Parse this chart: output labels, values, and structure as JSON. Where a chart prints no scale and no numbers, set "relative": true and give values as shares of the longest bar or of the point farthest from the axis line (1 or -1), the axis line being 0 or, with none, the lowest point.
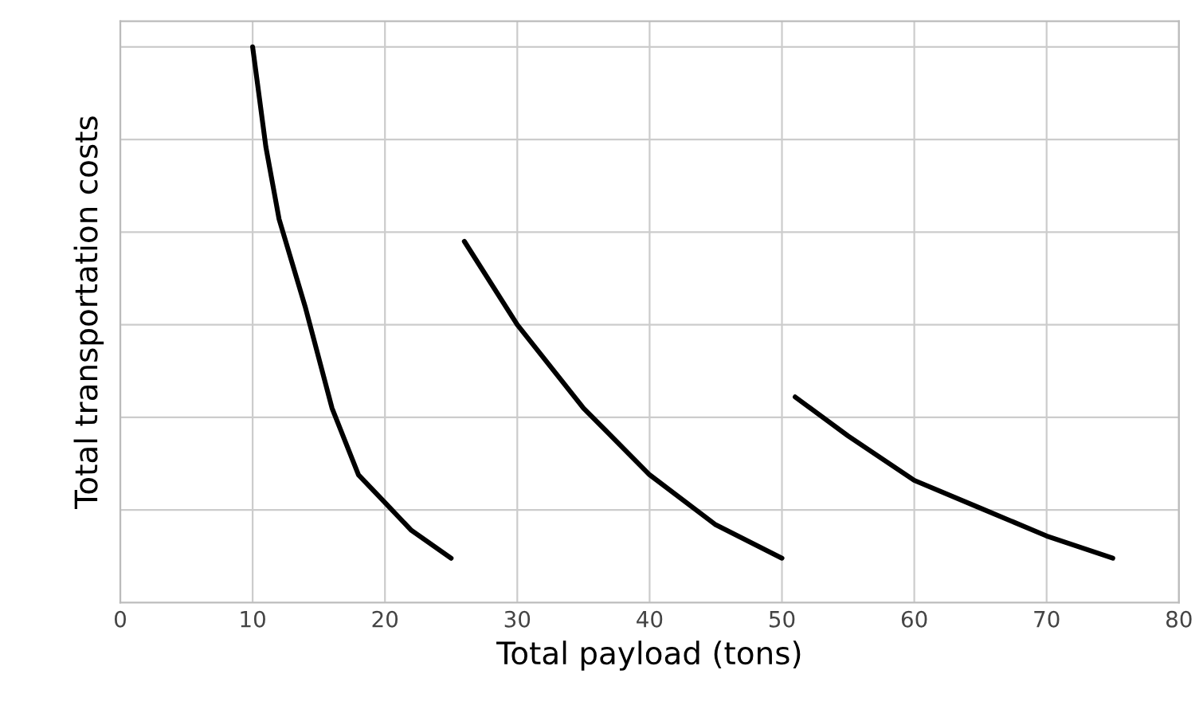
{
  "chart_data": {
    "type": "line",
    "relative": true,
    "xlabel": "Total payload (tons)",
    "ylabel": "Total transportation costs",
    "series": [
      {
        "color": "#000000",
        "x": [
          10,
          11,
          12,
          14,
          16,
          18,
          20,
          22,
          25
        ],
        "values": [
          1,
          0.82,
          0.69,
          0.53,
          0.35,
          0.23,
          0.18,
          0.13,
          0.08
        ]
      },
      {
        "color": "#000000",
        "x": [
          26,
          30,
          35,
          40,
          45,
          50
        ],
        "values": [
          0.65,
          0.5,
          0.35,
          0.23,
          0.14,
          0.08
        ]
      },
      {
        "color": "#000000",
        "x": [
          51,
          55,
          60,
          65,
          70,
          75
        ],
        "values": [
          0.37,
          0.3,
          0.22,
          0.17,
          0.12,
          0.08
        ]
      }
    ],
    "xlim": [
      0,
      80
    ],
    "xticks": [
      0,
      10,
      20,
      30,
      40,
      50,
      60,
      70,
      80
    ],
    "grid": true,
    "line_style": "solid",
    "marker": "none"
  }
}
